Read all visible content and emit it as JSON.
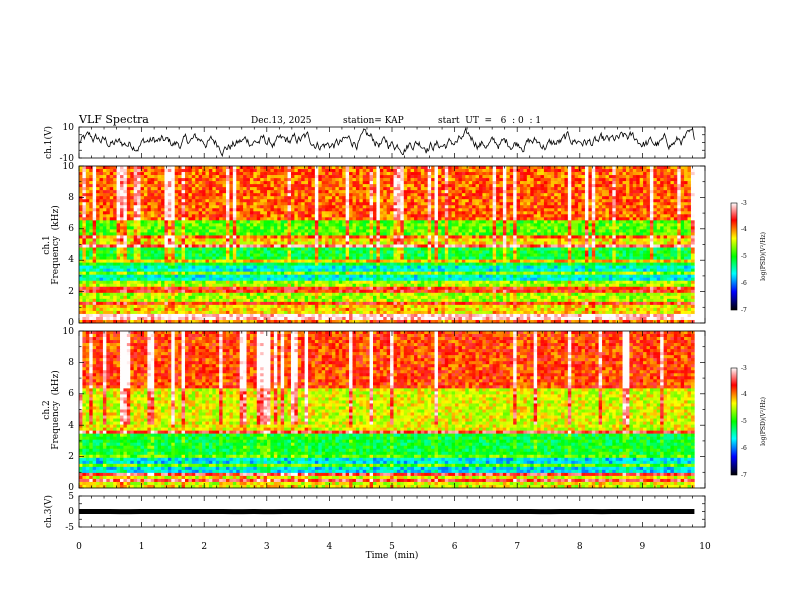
{
  "header": {
    "title": "VLF Spectra",
    "date": "Dec.13, 2025",
    "station": "station= KAP",
    "start_ut": "start  UT  =   6  : 0  : 1"
  },
  "chart_data": [
    {
      "type": "line",
      "name": "ch1-waveform",
      "ylabel": "ch.1(V)",
      "ylim": [
        -10,
        10
      ],
      "yticks": [
        "10",
        "-10"
      ],
      "xlim": [
        0,
        10
      ],
      "data_end": 9.83,
      "baseline": 0,
      "amplitude": 4.5
    },
    {
      "type": "heatmap",
      "name": "ch1-spectrogram",
      "ylabel_line1": "ch.1",
      "ylabel_line2": "Frequency  (kHz)",
      "ylim": [
        0,
        10
      ],
      "yticks": [
        "0",
        "2",
        "4",
        "6",
        "8",
        "10"
      ],
      "xlim": [
        0,
        10
      ],
      "data_end": 9.83,
      "bands": [
        {
          "f0": 10.0,
          "f1": 6.6,
          "level": -3.9
        },
        {
          "f0": 6.6,
          "f1": 5.4,
          "level": -4.8
        },
        {
          "f0": 5.4,
          "f1": 4.8,
          "level": -4.3
        },
        {
          "f0": 4.8,
          "f1": 3.6,
          "level": -5.1
        },
        {
          "f0": 3.6,
          "f1": 2.6,
          "level": -5.6
        },
        {
          "f0": 2.6,
          "f1": 1.2,
          "level": -4.6
        },
        {
          "f0": 1.2,
          "f1": 0.6,
          "level": -4.3
        },
        {
          "f0": 0.6,
          "f1": 0.0,
          "level": -4.0
        }
      ],
      "lines_khz": [
        0.3,
        0.5,
        1.3,
        2.0,
        2.3,
        3.2,
        3.9,
        4.9,
        5.4
      ],
      "colorbar": {
        "label": "log(PSD)(V²/Hz)",
        "range": [
          -7,
          -3
        ],
        "ticks": [
          "-3",
          "-4",
          "-5",
          "-6",
          "-7"
        ]
      }
    },
    {
      "type": "heatmap",
      "name": "ch2-spectrogram",
      "ylabel_line1": "ch.2",
      "ylabel_line2": "Frequency  (kHz)",
      "ylim": [
        0,
        10
      ],
      "yticks": [
        "0",
        "2",
        "4",
        "6",
        "8",
        "10"
      ],
      "xlim": [
        0,
        10
      ],
      "data_end": 9.83,
      "bands": [
        {
          "f0": 10.0,
          "f1": 6.4,
          "level": -3.8
        },
        {
          "f0": 6.4,
          "f1": 3.5,
          "level": -4.4
        },
        {
          "f0": 3.5,
          "f1": 2.2,
          "level": -5.1
        },
        {
          "f0": 2.2,
          "f1": 1.0,
          "level": -5.7
        },
        {
          "f0": 1.0,
          "f1": 0.0,
          "level": -4.4
        }
      ],
      "lines_khz": [
        0.4,
        0.9,
        1.4,
        2.1,
        3.6
      ],
      "colorbar": {
        "label": "log(PSD)(V²/Hz)",
        "range": [
          -7,
          -3
        ],
        "ticks": [
          "-3",
          "-4",
          "-5",
          "-6",
          "-7"
        ]
      }
    },
    {
      "type": "line",
      "name": "ch3-waveform",
      "ylabel": "ch.3(V)",
      "ylim": [
        -5,
        5
      ],
      "yticks": [
        "5",
        "0",
        "-5"
      ],
      "xlim": [
        0,
        10
      ],
      "data_end": 9.83,
      "baseline": 0,
      "amplitude": 0.4
    }
  ],
  "x_axis": {
    "label": "Time  (min)",
    "ticks": [
      "0",
      "1",
      "2",
      "3",
      "4",
      "5",
      "6",
      "7",
      "8",
      "9",
      "10"
    ]
  },
  "colors": {
    "colormap": [
      "#000000",
      "#0000ff",
      "#00ffff",
      "#00ff00",
      "#ffff00",
      "#ff0000",
      "#ffffff"
    ],
    "trace": "#000000"
  }
}
